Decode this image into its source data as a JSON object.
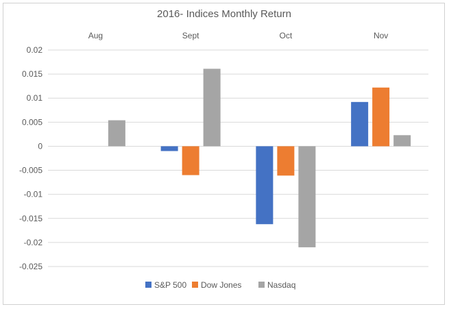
{
  "chart_data": {
    "type": "bar",
    "title": "2016- Indices Monthly Return",
    "categories": [
      "Aug",
      "Sept",
      "Oct",
      "Nov"
    ],
    "series": [
      {
        "name": "S&P 500",
        "color": "#4472C4",
        "values": [
          0,
          -0.001,
          -0.0162,
          0.0092
        ]
      },
      {
        "name": "Dow Jones",
        "color": "#ED7D31",
        "values": [
          0,
          -0.006,
          -0.0061,
          0.0122
        ]
      },
      {
        "name": "Nasdaq",
        "color": "#A5A5A5",
        "values": [
          0.0054,
          0.0161,
          -0.021,
          0.0023
        ]
      }
    ],
    "ylim": [
      -0.025,
      0.02
    ],
    "yticks": [
      "0.02",
      "0.015",
      "0.01",
      "0.005",
      "0",
      "-0.005",
      "-0.01",
      "-0.015",
      "-0.02",
      "-0.025"
    ],
    "category_labels_position": "top",
    "grid": true,
    "legend": "bottom"
  }
}
